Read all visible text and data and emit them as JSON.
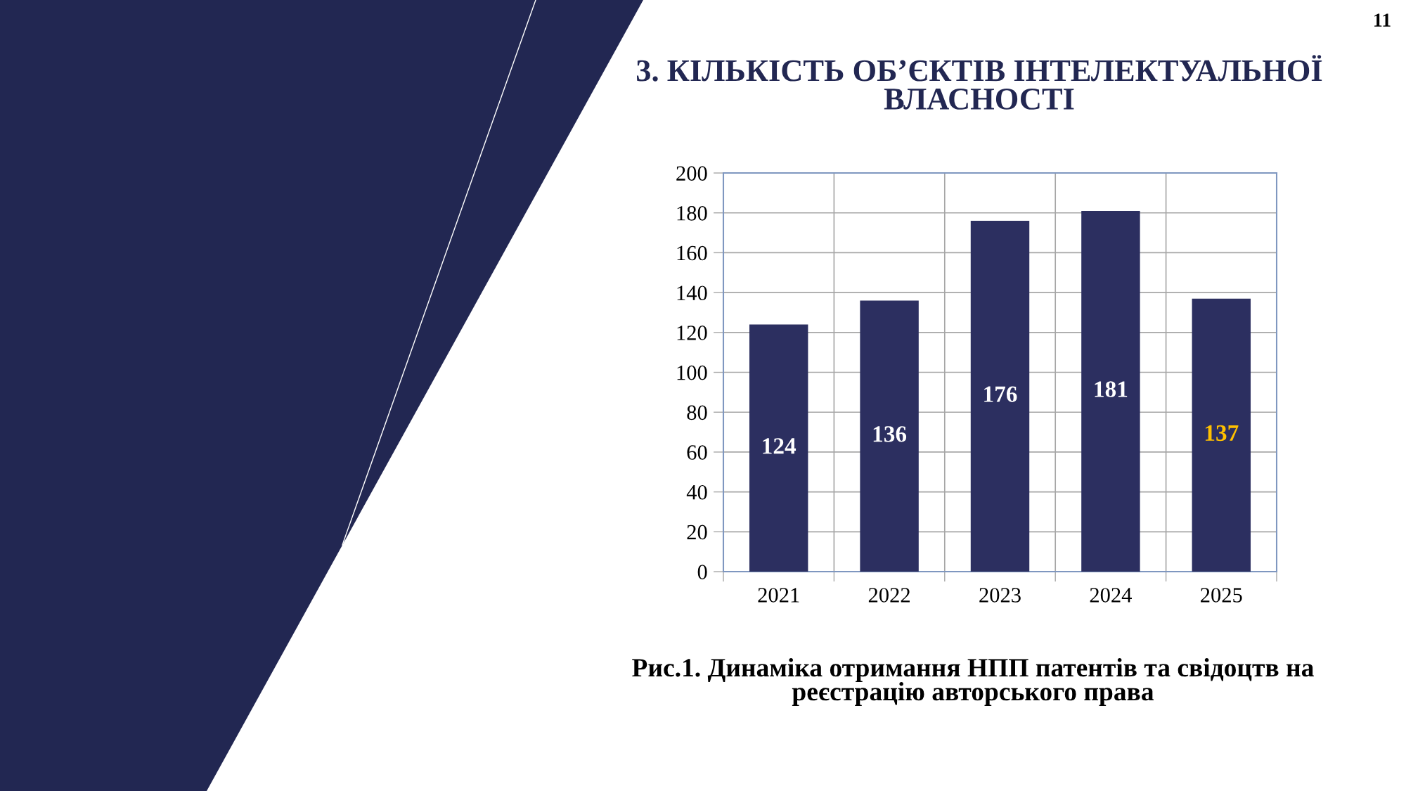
{
  "chart_data": {
    "type": "bar",
    "title": "3. КІЛЬКІСТЬ ОБ’ЄКТІВ ІНТЕЛЕКТУАЛЬНОЇ\nВЛАСНОСТІ",
    "categories": [
      "2021",
      "2022",
      "2023",
      "2024",
      "2025"
    ],
    "values": [
      124,
      136,
      176,
      181,
      137
    ],
    "color": "#2c2f60",
    "ylim": [
      0,
      200
    ],
    "yticks": [
      0,
      20,
      40,
      60,
      80,
      100,
      120,
      140,
      160,
      180,
      200
    ],
    "grid": true,
    "data_labels": true,
    "annotations": [
      "Рис.1. Динаміка отримання НПП патентів та свідоцтв на\nреєстрацію авторського права",
      "11"
    ]
  }
}
